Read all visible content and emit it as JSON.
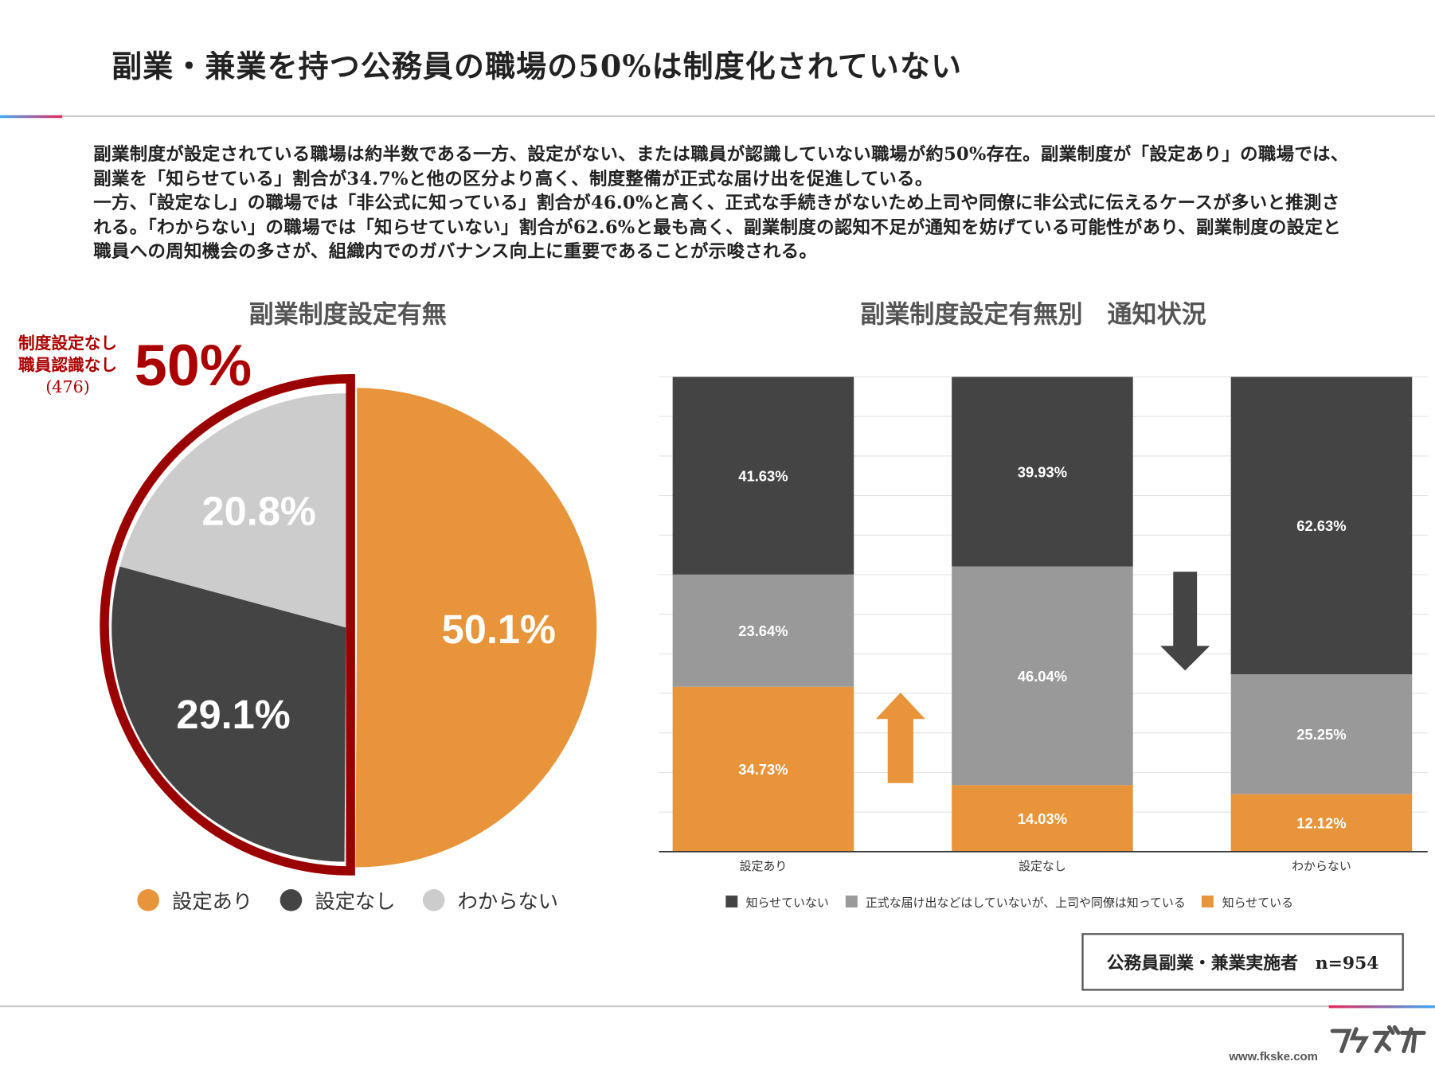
{
  "title": "副業・兼業を持つ公務員の職場の50%は制度化されていない",
  "description": [
    "副業制度が設定されている職場は約半数である一方、設定がない、または職員が認識していない職場が約50%存在。副業制度が「設定あり」の職場では、副業を「知らせている」割合が34.7%と他の区分より高く、制度整備が正式な届け出を促進している。",
    "一方、「設定なし」の職場では「非公式に知っている」割合が46.0%と高く、正式な手続きがないため上司や同僚に非公式に伝えるケースが多いと推測される。「わからない」の職場では「知らせていない」割合が62.6%と最も高く、副業制度の認知不足が通知を妨げている可能性があり、副業制度の設定と職員への周知機会の多さが、組織内でのガバナンス向上に重要であることが示唆される。"
  ],
  "callout": {
    "line1": "制度設定なし",
    "line2": "職員認識なし",
    "count": "(476)",
    "percent": "50%"
  },
  "sample_note": "公務員副業・兼業実施者　n=954",
  "footer": {
    "url": "www.fkske.com",
    "logo_text": "フクスケ"
  },
  "chart_data": [
    {
      "type": "pie",
      "title": "副業制度設定有無",
      "categories": [
        "設定あり",
        "設定なし",
        "わからない"
      ],
      "values": [
        50.1,
        29.1,
        20.8
      ],
      "labels": [
        "50.1%",
        "29.1%",
        "20.8%"
      ],
      "colors": [
        "#e8943a",
        "#444444",
        "#cccccc"
      ],
      "highlight_color": "#9b0000",
      "legend": "bottom"
    },
    {
      "type": "bar",
      "stacked": true,
      "title": "副業制度設定有無別　通知状況",
      "categories": [
        "設定あり",
        "設定なし",
        "わからない"
      ],
      "series": [
        {
          "name": "知らせている",
          "color": "#e8943a",
          "values": [
            34.73,
            14.03,
            12.12
          ]
        },
        {
          "name": "正式な届け出などはしていないが、上司や同僚は知っている",
          "color": "#999999",
          "values": [
            23.64,
            46.04,
            25.25
          ]
        },
        {
          "name": "知らせていない",
          "color": "#444444",
          "values": [
            41.63,
            39.93,
            62.63
          ]
        }
      ],
      "legend_order": [
        "知らせていない",
        "正式な届け出などはしていないが、上司や同僚は知っている",
        "知らせている"
      ],
      "ylim": [
        0,
        100
      ],
      "grid": true,
      "legend": "bottom",
      "annotations": [
        {
          "type": "arrow-up",
          "color": "#e8943a"
        },
        {
          "type": "arrow-down",
          "color": "#444444"
        }
      ]
    }
  ]
}
